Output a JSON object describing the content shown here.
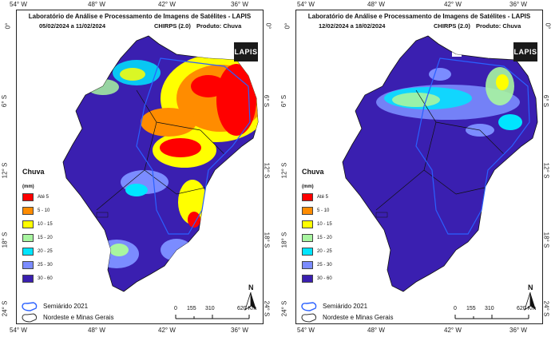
{
  "coords": {
    "lon_ticks": [
      "54° W",
      "48° W",
      "42° W",
      "36° W"
    ],
    "lat_ticks": [
      "0°",
      "6° S",
      "12° S",
      "18° S",
      "24° S"
    ]
  },
  "panels": [
    {
      "title_line1": "Laboratório de Análise e Processamento de Imagens de Satélites - LAPIS",
      "period": "05/02/2024  a  11/02/2024",
      "product": "CHIRPS (2.0)",
      "product_label": "Produto: Chuva",
      "logo": "LAPIS",
      "legend_title": "Chuva",
      "legend_unit": "(mm)",
      "legend_classes": [
        {
          "label": "Até 5",
          "color": "#ff0000"
        },
        {
          "label": "5 - 10",
          "color": "#ff8c00"
        },
        {
          "label": "10 - 15",
          "color": "#ffff00"
        },
        {
          "label": "15 - 20",
          "color": "#a8f5a0"
        },
        {
          "label": "20 - 25",
          "color": "#00e5ff"
        },
        {
          "label": "25 - 30",
          "color": "#7b8cff"
        },
        {
          "label": "30 - 60",
          "color": "#3a1fb0"
        }
      ],
      "semiarido_label": "Semiárido 2021",
      "region_label": "Nordeste e Minas Gerais",
      "scale_labels": [
        "0",
        "155",
        "310",
        "620 Km"
      ],
      "north_label": "N"
    },
    {
      "title_line1": "Laboratório de Análise e Processamento de Imagens de Satélites - LAPIS",
      "period": "12/02/2024  a  18/02/2024",
      "product": "CHIRPS (2.0)",
      "product_label": "Produto: Chuva",
      "logo": "LAPIS",
      "legend_title": "Chuva",
      "legend_unit": "(mm)",
      "legend_classes": [
        {
          "label": "Até 5",
          "color": "#ff0000"
        },
        {
          "label": "5 - 10",
          "color": "#ff8c00"
        },
        {
          "label": "10 - 15",
          "color": "#ffff00"
        },
        {
          "label": "15 - 20",
          "color": "#a8f5a0"
        },
        {
          "label": "20 - 25",
          "color": "#00e5ff"
        },
        {
          "label": "25 - 30",
          "color": "#7b8cff"
        },
        {
          "label": "30 - 60",
          "color": "#3a1fb0"
        }
      ],
      "semiarido_label": "Semiárido 2021",
      "region_label": "Nordeste e Minas Gerais",
      "scale_labels": [
        "0",
        "155",
        "310",
        "620 Km"
      ],
      "north_label": "N"
    }
  ]
}
